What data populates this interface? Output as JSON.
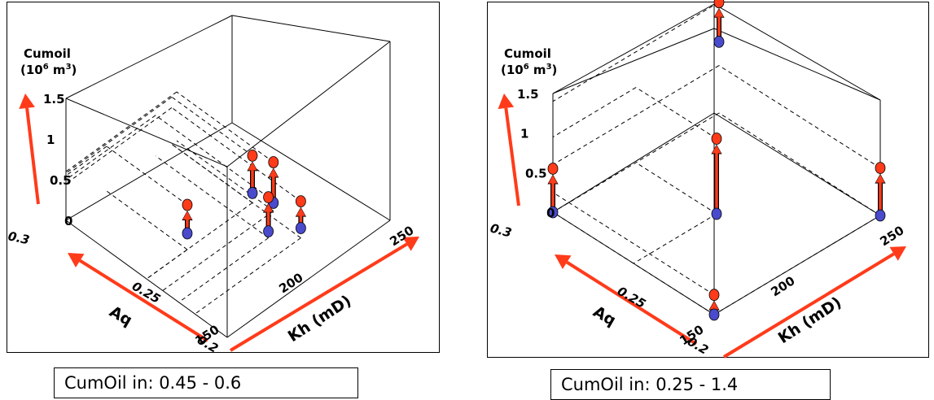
{
  "colors": {
    "accent_arrow": "#ff3b1a",
    "point_initial": "#4a4acc",
    "point_final": "#ff3b1a",
    "edge": "#000000"
  },
  "chart_data": [
    {
      "type": "scatter",
      "subtype": "3d",
      "zlabel_line1": "Cumoil",
      "zlabel_line2_base": "(10",
      "zlabel_line2_exp1": "6",
      "zlabel_line2_mid": " m",
      "zlabel_line2_exp2": "3",
      "zlabel_line2_end": ")",
      "zticks": [
        "1.5",
        "1",
        "0.5",
        "0"
      ],
      "aq_label": "Aq",
      "aq_ticks": [
        "0.3",
        "0.25",
        "0.2"
      ],
      "kh_label": "Kh  (mD)",
      "kh_ticks": [
        "150",
        "200",
        "250"
      ],
      "caption": "CumOil in: 0.45 - 0.6",
      "points": [
        {
          "aq": 0.25,
          "kh": 175,
          "initial": 0.2,
          "final": 0.55
        },
        {
          "aq": 0.25,
          "kh": 215,
          "initial": 0.12,
          "final": 0.58
        },
        {
          "aq": 0.24,
          "kh": 218,
          "initial": 0.1,
          "final": 0.6
        },
        {
          "aq": 0.23,
          "kh": 205,
          "initial": 0.08,
          "final": 0.5
        },
        {
          "aq": 0.22,
          "kh": 215,
          "initial": 0.12,
          "final": 0.45
        }
      ]
    },
    {
      "type": "scatter",
      "subtype": "3d",
      "zlabel_line1": "Cumoil",
      "zlabel_line2_base": "(10",
      "zlabel_line2_exp1": "6",
      "zlabel_line2_mid": " m",
      "zlabel_line2_exp2": "3",
      "zlabel_line2_end": ")",
      "zticks": [
        "1.5",
        "1",
        "0.5",
        "0"
      ],
      "aq_label": "Aq",
      "aq_ticks": [
        "0.3",
        "0.25",
        "0.2"
      ],
      "kh_label": "Kh  (mD)",
      "kh_ticks": [
        "150",
        "200",
        "250"
      ],
      "caption": "CumOil in: 0.25 - 1.4",
      "points": [
        {
          "aq": 0.3,
          "kh": 150,
          "initial": 0.0,
          "final": 0.55
        },
        {
          "aq": 0.25,
          "kh": 200,
          "initial": 0.0,
          "final": 0.95
        },
        {
          "aq": 0.3,
          "kh": 250,
          "initial": 0.9,
          "final": 1.4
        },
        {
          "aq": 0.2,
          "kh": 250,
          "initial": 0.0,
          "final": 0.6
        },
        {
          "aq": 0.2,
          "kh": 150,
          "initial": 0.0,
          "final": 0.25
        }
      ]
    }
  ]
}
